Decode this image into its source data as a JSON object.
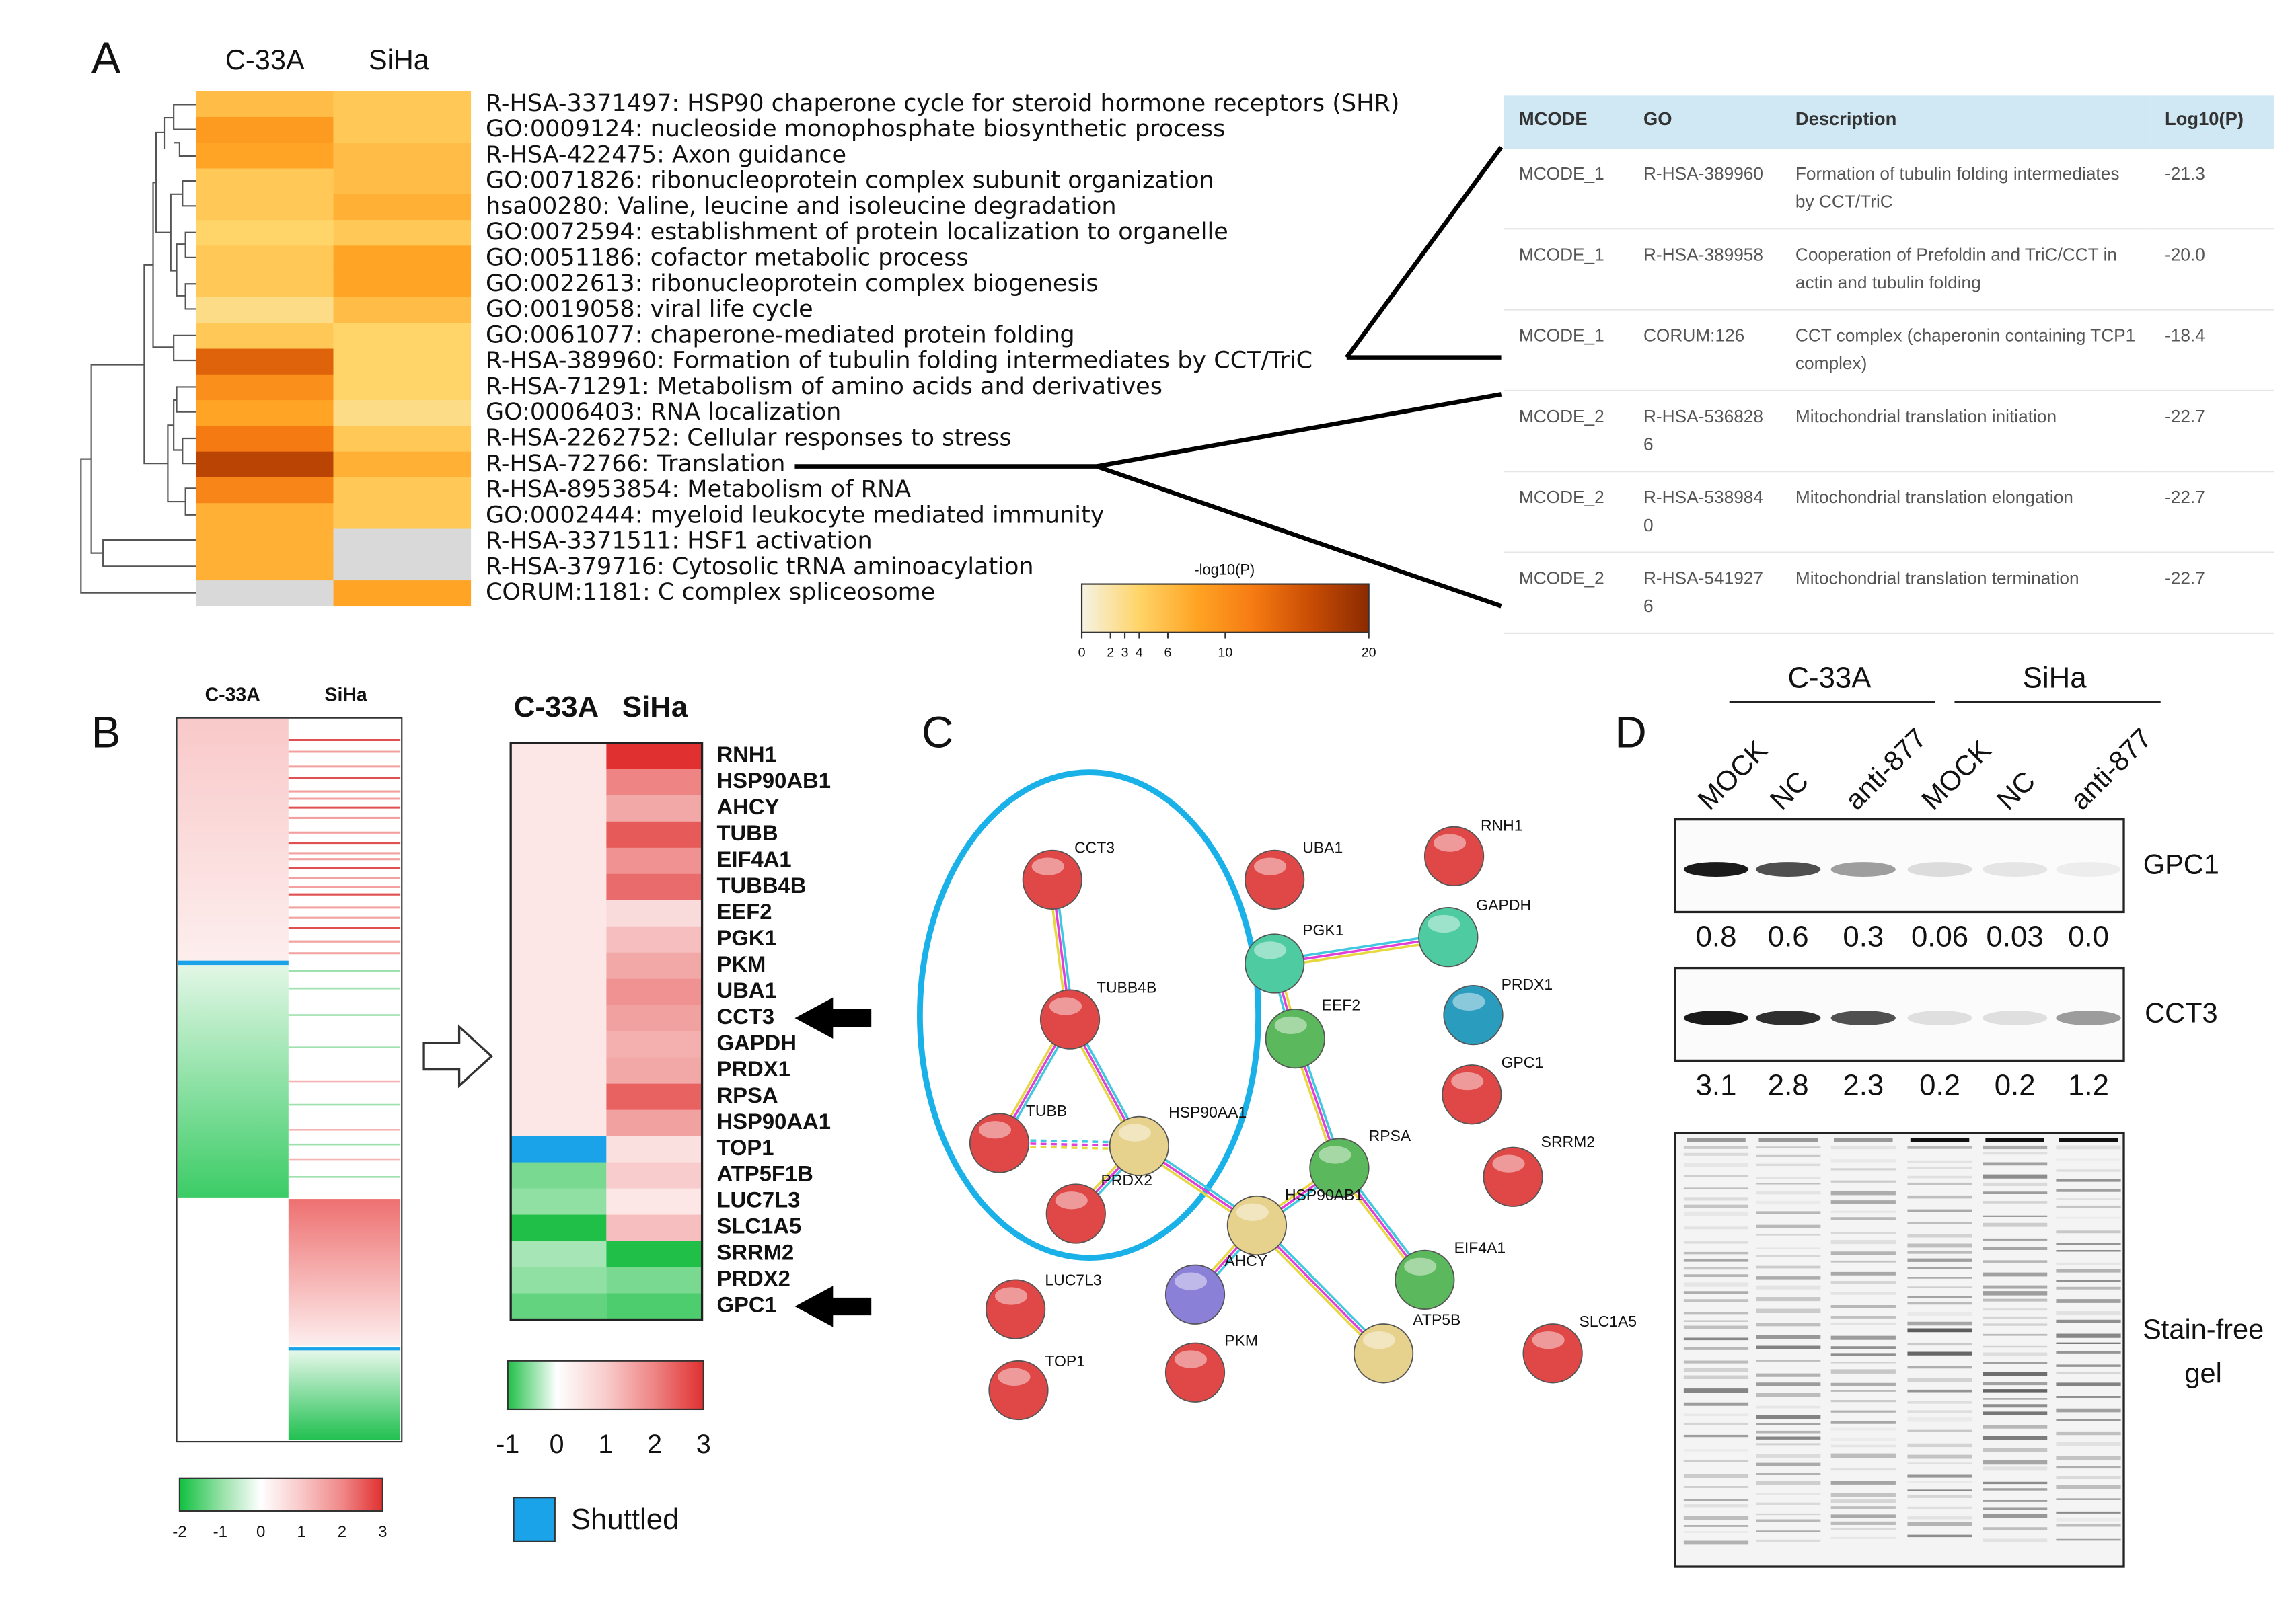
{
  "panels": {
    "A": {
      "letter": "A",
      "columns": [
        "C-33A",
        "SiHa"
      ],
      "null_color": "#d9d9d9",
      "rows": [
        {
          "term": "R-HSA-3371497: HSP90 chaperone cycle for steroid hormone receptors (SHR)",
          "values": [
            6,
            5
          ]
        },
        {
          "term": "GO:0009124: nucleoside monophosphate biosynthetic process",
          "values": [
            9,
            5
          ]
        },
        {
          "term": "R-HSA-422475: Axon guidance",
          "values": [
            8,
            6
          ]
        },
        {
          "term": "GO:0071826: ribonucleoprotein complex subunit organization",
          "values": [
            5,
            6
          ]
        },
        {
          "term": "hsa00280: Valine, leucine and isoleucine degradation",
          "values": [
            5,
            7
          ]
        },
        {
          "term": "GO:0072594: establishment of protein localization to organelle",
          "values": [
            4,
            5
          ]
        },
        {
          "term": "GO:0051186: cofactor metabolic process",
          "values": [
            5,
            8
          ]
        },
        {
          "term": "GO:0022613: ribonucleoprotein complex biogenesis",
          "values": [
            5,
            8
          ]
        },
        {
          "term": "GO:0019058: viral life cycle",
          "values": [
            3,
            6
          ]
        },
        {
          "term": "GO:0061077: chaperone-mediated protein folding",
          "values": [
            5,
            4
          ]
        },
        {
          "term": "R-HSA-389960: Formation of tubulin folding intermediates by CCT/TriC",
          "values": [
            14,
            4
          ]
        },
        {
          "term": "R-HSA-71291: Metabolism of amino acids and derivatives",
          "values": [
            10,
            4
          ]
        },
        {
          "term": "GO:0006403: RNA localization",
          "values": [
            8,
            3
          ]
        },
        {
          "term": "R-HSA-2262752: Cellular responses to stress",
          "values": [
            12,
            5
          ]
        },
        {
          "term": "R-HSA-72766: Translation",
          "values": [
            17,
            7
          ]
        },
        {
          "term": "R-HSA-8953854: Metabolism of RNA",
          "values": [
            11,
            5
          ]
        },
        {
          "term": "GO:0002444: myeloid leukocyte mediated immunity",
          "values": [
            7,
            5
          ]
        },
        {
          "term": "R-HSA-3371511: HSF1 activation",
          "values": [
            7,
            null
          ]
        },
        {
          "term": "R-HSA-379716: Cytosolic tRNA aminoacylation",
          "values": [
            7,
            null
          ]
        },
        {
          "term": "CORUM:1181: C complex spliceosome",
          "values": [
            null,
            8
          ]
        }
      ],
      "colorbar": {
        "title": "-log10(P)",
        "lim": [
          0,
          20
        ],
        "ticks": [
          0,
          2,
          3,
          4,
          6,
          10,
          20
        ],
        "colors": [
          "#f5f3e4",
          "#ffd468",
          "#ffa424",
          "#f57a12",
          "#c84c04",
          "#8b2a02"
        ]
      },
      "table": {
        "header": [
          "MCODE",
          "GO",
          "Description",
          "Log10(P)"
        ],
        "rows": [
          [
            "MCODE_1",
            "R-HSA-389960",
            "Formation of tubulin folding intermediates by CCT/TriC",
            "-21.3"
          ],
          [
            "MCODE_1",
            "R-HSA-389958",
            "Cooperation of Prefoldin and TriC/CCT in actin and tubulin folding",
            "-20.0"
          ],
          [
            "MCODE_1",
            "CORUM:126",
            "CCT complex (chaperonin containing TCP1 complex)",
            "-18.4"
          ],
          [
            "MCODE_2",
            "R-HSA-5368286",
            "Mitochondrial translation initiation",
            "-22.7"
          ],
          [
            "MCODE_2",
            "R-HSA-5389840",
            "Mitochondrial translation elongation",
            "-22.7"
          ],
          [
            "MCODE_2",
            "R-HSA-5419276",
            "Mitochondrial translation termination",
            "-22.7"
          ]
        ]
      }
    },
    "B": {
      "letter": "B",
      "overview_columns": [
        "C-33A",
        "SiHa"
      ],
      "overview_colorbar": {
        "lim": [
          -2,
          3
        ],
        "ticks": [
          -2,
          -1,
          0,
          1,
          2,
          3
        ],
        "colors": [
          "#10c040",
          "#92e0a4",
          "#ffffff",
          "#f8c8c8",
          "#f08888",
          "#e03030"
        ]
      },
      "columns": [
        "C-33A",
        "SiHa"
      ],
      "genes": [
        {
          "name": "RNH1",
          "values": [
            0.5,
            3
          ]
        },
        {
          "name": "HSP90AB1",
          "values": [
            0.5,
            2
          ]
        },
        {
          "name": "AHCY",
          "values": [
            0.5,
            1.5
          ]
        },
        {
          "name": "TUBB",
          "values": [
            0.5,
            2.5
          ]
        },
        {
          "name": "EIF4A1",
          "values": [
            0.5,
            1.8
          ]
        },
        {
          "name": "TUBB4B",
          "values": [
            0.5,
            2.3
          ]
        },
        {
          "name": "EEF2",
          "values": [
            0.5,
            0.7
          ]
        },
        {
          "name": "PGK1",
          "values": [
            0.5,
            1.2
          ]
        },
        {
          "name": "PKM",
          "values": [
            0.5,
            1.5
          ]
        },
        {
          "name": "UBA1",
          "values": [
            0.5,
            1.8
          ]
        },
        {
          "name": "CCT3",
          "values": [
            0.5,
            1.6
          ]
        },
        {
          "name": "GAPDH",
          "values": [
            0.5,
            1.4
          ]
        },
        {
          "name": "PRDX1",
          "values": [
            0.5,
            1.5
          ]
        },
        {
          "name": "RPSA",
          "values": [
            0.5,
            2.4
          ]
        },
        {
          "name": "HSP90AA1",
          "values": [
            0.5,
            1.6
          ]
        },
        {
          "name": "TOP1",
          "values": [
            null,
            0.6
          ]
        },
        {
          "name": "ATP5F1B",
          "values": [
            -0.6,
            1
          ]
        },
        {
          "name": "LUC7L3",
          "values": [
            -0.5,
            0.5
          ]
        },
        {
          "name": "SLC1A5",
          "values": [
            -1,
            1.2
          ]
        },
        {
          "name": "SRRM2",
          "values": [
            -0.4,
            -1
          ]
        },
        {
          "name": "PRDX2",
          "values": [
            -0.5,
            -0.6
          ]
        },
        {
          "name": "GPC1",
          "values": [
            -0.7,
            -0.8
          ]
        }
      ],
      "colorbar": {
        "lim": [
          -1,
          3
        ],
        "ticks": [
          -1,
          0,
          1,
          2,
          3
        ],
        "colors": [
          "#20c048",
          "#ffffff",
          "#f8cccc",
          "#ee8484",
          "#e03030"
        ]
      },
      "legend": {
        "label": "Shuttled",
        "color": "#1aa3e8"
      }
    },
    "C": {
      "letter": "C",
      "nodes": [
        {
          "label": "CCT3",
          "color": "#e04848"
        },
        {
          "label": "UBA1",
          "color": "#e04848"
        },
        {
          "label": "RNH1",
          "color": "#e04848"
        },
        {
          "label": "PGK1",
          "color": "#4ecba0"
        },
        {
          "label": "GAPDH",
          "color": "#4ecba0"
        },
        {
          "label": "TUBB4B",
          "color": "#e04848"
        },
        {
          "label": "EEF2",
          "color": "#5cb85c"
        },
        {
          "label": "PRDX1",
          "color": "#2a9dbf"
        },
        {
          "label": "GPC1",
          "color": "#e04848"
        },
        {
          "label": "TUBB",
          "color": "#e04848"
        },
        {
          "label": "HSP90AA1",
          "color": "#e6d28c"
        },
        {
          "label": "RPSA",
          "color": "#5cb85c"
        },
        {
          "label": "SRRM2",
          "color": "#e04848"
        },
        {
          "label": "PRDX2",
          "color": "#e04848"
        },
        {
          "label": "HSP90AB1",
          "color": "#e6d28c"
        },
        {
          "label": "AHCY",
          "color": "#8a80d8"
        },
        {
          "label": "EIF4A1",
          "color": "#5cb85c"
        },
        {
          "label": "LUC7L3",
          "color": "#e04848"
        },
        {
          "label": "ATP5B",
          "color": "#e6d28c"
        },
        {
          "label": "SLC1A5",
          "color": "#e04848"
        },
        {
          "label": "TOP1",
          "color": "#e04848"
        },
        {
          "label": "PKM",
          "color": "#e04848"
        }
      ]
    },
    "D": {
      "letter": "D",
      "groups": [
        "C-33A",
        "SiHa"
      ],
      "lanes": [
        "MOCK",
        "NC",
        "anti-877",
        "MOCK",
        "NC",
        "anti-877"
      ],
      "blots": [
        {
          "label": "GPC1",
          "values": [
            0.8,
            0.6,
            0.3,
            0.06,
            0.03,
            {
              "value": 0,
              "label": "0.0"
            }
          ]
        },
        {
          "label": "CCT3",
          "values": [
            3.1,
            2.8,
            2.3,
            0.2,
            0.2,
            1.2
          ]
        }
      ],
      "gel_label": [
        "Stain-free",
        "gel"
      ]
    }
  }
}
